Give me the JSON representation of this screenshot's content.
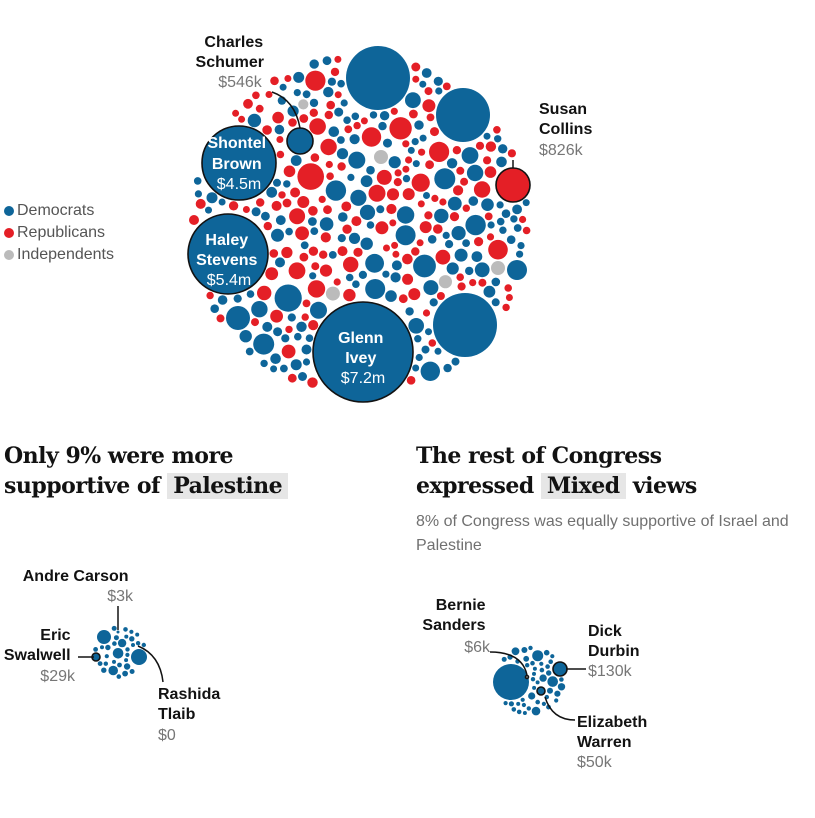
{
  "colors": {
    "democrat": "#0e6599",
    "republican": "#e41f26",
    "independent": "#bbbbbb"
  },
  "legend": {
    "items": [
      {
        "label": "Democrats",
        "color": "#0e6599"
      },
      {
        "label": "Republicans",
        "color": "#e41f26"
      },
      {
        "label": "Independents",
        "color": "#bbbbbb"
      }
    ]
  },
  "sections": {
    "palestine": {
      "heading_pre": "Only 9% were more",
      "heading_line2_pre": "supportive of",
      "heading_highlight": "Palestine"
    },
    "mixed": {
      "heading_pre": "The rest of Congress",
      "heading_line2_pre": "expressed",
      "heading_highlight": "Mixed",
      "heading_post": "views",
      "subtitle": "8% of Congress was equally supportive of Israel and Palestine"
    }
  },
  "chart_data": {
    "type": "bubble",
    "groups": [
      {
        "group": "main",
        "members": [
          {
            "name": [
              "Charles",
              "Schumer"
            ],
            "party": "Democrat",
            "amount": 546000,
            "value_label": "$546k"
          },
          {
            "name": [
              "Shontel",
              "Brown"
            ],
            "party": "Democrat",
            "amount": 4500000,
            "value_label": "$4.5m"
          },
          {
            "name": [
              "Haley",
              "Stevens"
            ],
            "party": "Democrat",
            "amount": 5400000,
            "value_label": "$5.4m"
          },
          {
            "name": [
              "Glenn",
              "Ivey"
            ],
            "party": "Democrat",
            "amount": 7200000,
            "value_label": "$7.2m"
          },
          {
            "name": [
              "Susan",
              "Collins"
            ],
            "party": "Republican",
            "amount": 826000,
            "value_label": "$826k"
          }
        ]
      },
      {
        "group": "palestine",
        "members": [
          {
            "name": [
              "Andre Carson"
            ],
            "party": "Democrat",
            "amount": 3000,
            "value_label": "$3k"
          },
          {
            "name": [
              "Eric",
              "Swalwell"
            ],
            "party": "Democrat",
            "amount": 29000,
            "value_label": "$29k"
          },
          {
            "name": [
              "Rashida",
              "Tlaib"
            ],
            "party": "Democrat",
            "amount": 0,
            "value_label": "$0"
          }
        ]
      },
      {
        "group": "mixed",
        "members": [
          {
            "name": [
              "Bernie",
              "Sanders"
            ],
            "party": "Independent",
            "amount": 6000,
            "value_label": "$6k"
          },
          {
            "name": [
              "Dick",
              "Durbin"
            ],
            "party": "Democrat",
            "amount": 130000,
            "value_label": "$130k"
          },
          {
            "name": [
              "Elizabeth",
              "Warren"
            ],
            "party": "Democrat",
            "amount": 50000,
            "value_label": "$50k"
          }
        ]
      }
    ]
  }
}
